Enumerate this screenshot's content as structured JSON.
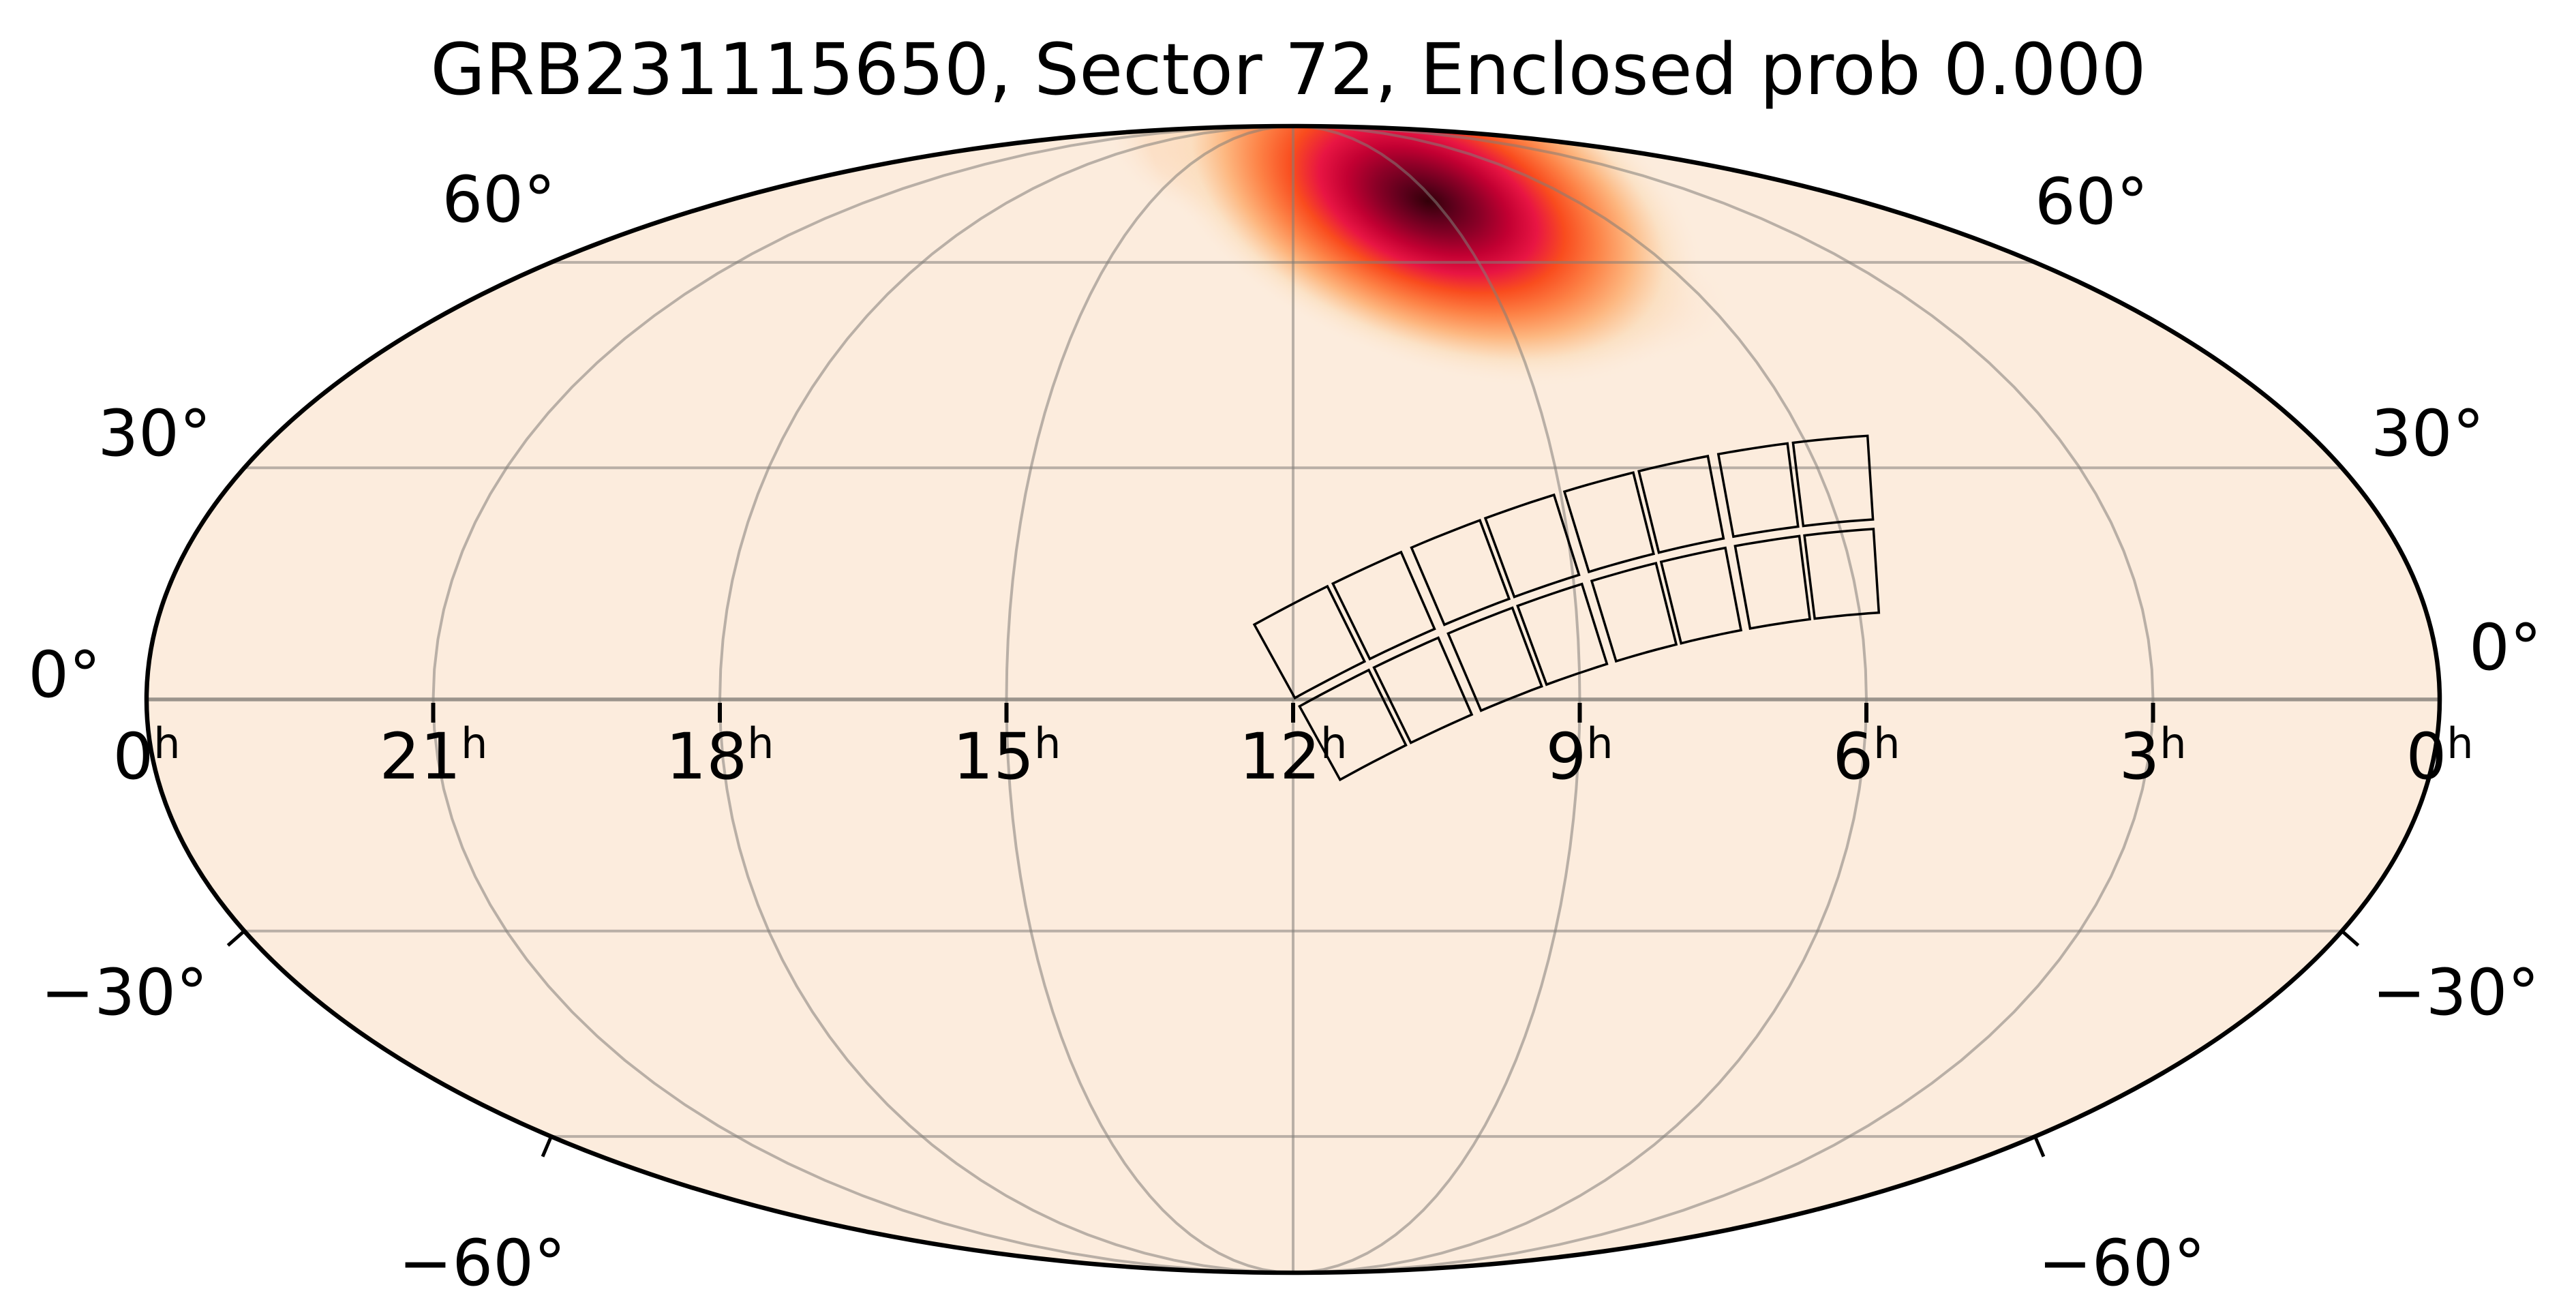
{
  "title": "GRB231115650, Sector 72, Enclosed prob 0.000",
  "chart_data": {
    "type": "heatmap",
    "projection": "mollweide-sky-map",
    "title": "GRB231115650, Sector 72, Enclosed prob 0.000",
    "grb_name": "GRB231115650",
    "sector": 72,
    "enclosed_prob": "0.000",
    "ra_axis": {
      "unit": "h",
      "tick_labels": [
        "0",
        "21",
        "18",
        "15",
        "12",
        "9",
        "6",
        "3",
        "0"
      ],
      "tick_hours": [
        0,
        21,
        18,
        15,
        12,
        9,
        6,
        3,
        0
      ],
      "direction": "right ascension increases right-to-left, 12h at center"
    },
    "dec_axis": {
      "tick_labels_left": [
        "60°",
        "30°",
        "0°",
        "−30°",
        "−60°"
      ],
      "tick_labels_right": [
        "60°",
        "30°",
        "0°",
        "−30°",
        "−60°"
      ],
      "tick_degrees": [
        60,
        30,
        0,
        -30,
        -60
      ]
    },
    "graticule": {
      "grid_on": true,
      "meridian_spacing_deg": 45,
      "parallel_spacing_deg": 30
    },
    "probability_hotspot": {
      "peak_ra_h": 9.0,
      "peak_dec_deg": 71,
      "shape": "elongated ellipse tilted ~22° (upper-left to lower-right)",
      "extent_note": "localization spans roughly RA 7h-11h, Dec +55° to pole, faint tail below +60°"
    },
    "colormap": {
      "name": "cylon-like (cream → orange → crimson → dark maroon)",
      "core_stops": [
        "#320009",
        "#5c001b",
        "#8c0027",
        "#c20032",
        "#e81543",
        "#f94c1e",
        "#fd8347",
        "#fdb780",
        "#fbe0c2",
        "#fcecdd"
      ],
      "core_offsets": [
        0,
        0.09,
        0.19,
        0.29,
        0.39,
        0.49,
        0.61,
        0.73,
        0.85,
        1
      ]
    },
    "tess_footprint": {
      "cameras": 4,
      "ccd_grid": "8 columns × 2 rows of CCD quads along a curved strip",
      "strip_start": {
        "ra_h": 12.0,
        "dec_deg": -5
      },
      "strip_end": {
        "ra_h": 5.6,
        "dec_deg": 23
      },
      "outline_color": "#000000"
    },
    "background_color": "#fcecdd",
    "grid_color_rgba": "rgba(130,126,120,0.55)",
    "equator_color_rgba": "rgba(130,126,120,0.8)",
    "outline_color": "#000000",
    "tick_color": "#000000"
  }
}
